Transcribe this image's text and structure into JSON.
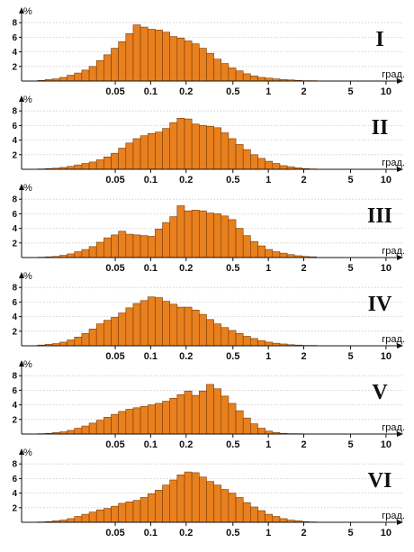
{
  "figure": {
    "type": "histogram-stack",
    "y_unit_label": "%",
    "x_unit_label": "град.",
    "bar_color": "#e8801e",
    "bar_edge_color": "#7a3a06"
  },
  "chart_data": [
    {
      "panel_label": "I",
      "type": "bar",
      "x_scale": "log",
      "xlim": [
        0.008,
        14
      ],
      "ylim": [
        0,
        9
      ],
      "x_ticks": [
        0.05,
        0.1,
        0.2,
        0.5,
        1,
        2,
        5,
        10
      ],
      "x_tick_labels": [
        "0.05",
        "0.1",
        "0.2",
        "0.5",
        "1",
        "2",
        "5",
        "10"
      ],
      "y_ticks": [
        2,
        4,
        6,
        8
      ],
      "xlabel": "град.",
      "ylabel": "%",
      "values": [
        0.1,
        0.2,
        0.3,
        0.5,
        0.8,
        1.1,
        1.5,
        2.0,
        2.8,
        3.6,
        4.5,
        5.4,
        6.5,
        7.7,
        7.4,
        7.1,
        7.0,
        6.7,
        6.1,
        5.9,
        5.5,
        5.1,
        4.5,
        3.8,
        3.0,
        2.4,
        1.8,
        1.4,
        1.0,
        0.7,
        0.5,
        0.4,
        0.3,
        0.2,
        0.15,
        0.1,
        0.05,
        0.05
      ]
    },
    {
      "panel_label": "II",
      "type": "bar",
      "x_scale": "log",
      "xlim": [
        0.008,
        14
      ],
      "ylim": [
        0,
        9
      ],
      "x_ticks": [
        0.05,
        0.1,
        0.2,
        0.5,
        1,
        2,
        5,
        10
      ],
      "x_tick_labels": [
        "0.05",
        "0.1",
        "0.2",
        "0.5",
        "1",
        "2",
        "5",
        "10"
      ],
      "y_ticks": [
        2,
        4,
        6,
        8
      ],
      "xlabel": "град.",
      "ylabel": "%",
      "values": [
        0.05,
        0.1,
        0.15,
        0.25,
        0.4,
        0.6,
        0.8,
        1.0,
        1.3,
        1.7,
        2.2,
        2.9,
        3.6,
        4.2,
        4.6,
        4.9,
        5.1,
        5.6,
        6.4,
        7.0,
        6.9,
        6.2,
        6.0,
        5.9,
        5.7,
        5.0,
        4.2,
        3.4,
        2.7,
        2.0,
        1.5,
        1.1,
        0.8,
        0.5,
        0.35,
        0.2,
        0.1,
        0.05
      ]
    },
    {
      "panel_label": "III",
      "type": "bar",
      "x_scale": "log",
      "xlim": [
        0.008,
        14
      ],
      "ylim": [
        0,
        9
      ],
      "x_ticks": [
        0.05,
        0.1,
        0.2,
        0.5,
        1,
        2,
        5,
        10
      ],
      "x_tick_labels": [
        "0.05",
        "0.1",
        "0.2",
        "0.5",
        "1",
        "2",
        "5",
        "10"
      ],
      "y_ticks": [
        2,
        4,
        6,
        8
      ],
      "xlabel": "град.",
      "ylabel": "%",
      "values": [
        0.05,
        0.1,
        0.15,
        0.3,
        0.5,
        0.8,
        1.1,
        1.5,
        2.1,
        2.7,
        3.1,
        3.6,
        3.2,
        3.1,
        3.0,
        2.9,
        3.9,
        4.8,
        5.6,
        7.1,
        6.4,
        6.5,
        6.4,
        6.1,
        6.0,
        5.7,
        5.2,
        4.0,
        3.0,
        2.2,
        1.6,
        1.1,
        0.8,
        0.6,
        0.4,
        0.25,
        0.15,
        0.1
      ]
    },
    {
      "panel_label": "IV",
      "type": "bar",
      "x_scale": "log",
      "xlim": [
        0.008,
        14
      ],
      "ylim": [
        0,
        9
      ],
      "x_ticks": [
        0.05,
        0.1,
        0.2,
        0.5,
        1,
        2,
        5,
        10
      ],
      "x_tick_labels": [
        "0.05",
        "0.1",
        "0.2",
        "0.5",
        "1",
        "2",
        "5",
        "10"
      ],
      "y_ticks": [
        2,
        4,
        6,
        8
      ],
      "xlabel": "град.",
      "ylabel": "%",
      "values": [
        0.1,
        0.2,
        0.3,
        0.5,
        0.8,
        1.2,
        1.7,
        2.3,
        3.0,
        3.5,
        3.9,
        4.5,
        5.2,
        5.8,
        6.2,
        6.7,
        6.6,
        6.1,
        5.7,
        5.3,
        5.3,
        4.9,
        4.3,
        3.6,
        3.0,
        2.5,
        2.1,
        1.7,
        1.3,
        1.0,
        0.7,
        0.5,
        0.35,
        0.25,
        0.15,
        0.1,
        0.05,
        0.05
      ]
    },
    {
      "panel_label": "V",
      "type": "bar",
      "x_scale": "log",
      "xlim": [
        0.008,
        14
      ],
      "ylim": [
        0,
        9
      ],
      "x_ticks": [
        0.05,
        0.1,
        0.2,
        0.5,
        1,
        2,
        5,
        10
      ],
      "x_tick_labels": [
        "0.05",
        "0.1",
        "0.2",
        "0.5",
        "1",
        "2",
        "5",
        "10"
      ],
      "y_ticks": [
        2,
        4,
        6,
        8
      ],
      "xlabel": "град.",
      "ylabel": "%",
      "values": [
        0.05,
        0.1,
        0.2,
        0.3,
        0.5,
        0.8,
        1.1,
        1.5,
        1.9,
        2.3,
        2.7,
        3.1,
        3.4,
        3.6,
        3.8,
        4.0,
        4.2,
        4.5,
        4.9,
        5.4,
        5.9,
        5.3,
        5.9,
        6.8,
        6.2,
        5.2,
        4.2,
        3.2,
        2.2,
        1.4,
        0.8,
        0.4,
        0.2,
        0.1,
        0.05,
        0.05,
        0.0,
        0.0
      ]
    },
    {
      "panel_label": "VI",
      "type": "bar",
      "x_scale": "log",
      "xlim": [
        0.008,
        14
      ],
      "ylim": [
        0,
        9
      ],
      "x_ticks": [
        0.05,
        0.1,
        0.2,
        0.5,
        1,
        2,
        5,
        10
      ],
      "x_tick_labels": [
        "0.05",
        "0.1",
        "0.2",
        "0.5",
        "1",
        "2",
        "5",
        "10"
      ],
      "y_ticks": [
        2,
        4,
        6,
        8
      ],
      "xlabel": "град.",
      "ylabel": "%",
      "values": [
        0.05,
        0.1,
        0.2,
        0.3,
        0.5,
        0.8,
        1.1,
        1.4,
        1.7,
        1.9,
        2.2,
        2.6,
        2.8,
        3.0,
        3.4,
        3.9,
        4.4,
        5.1,
        5.8,
        6.5,
        6.9,
        6.8,
        6.2,
        5.6,
        5.1,
        4.5,
        4.0,
        3.4,
        2.7,
        2.1,
        1.6,
        1.1,
        0.8,
        0.5,
        0.3,
        0.2,
        0.1,
        0.05
      ]
    }
  ]
}
